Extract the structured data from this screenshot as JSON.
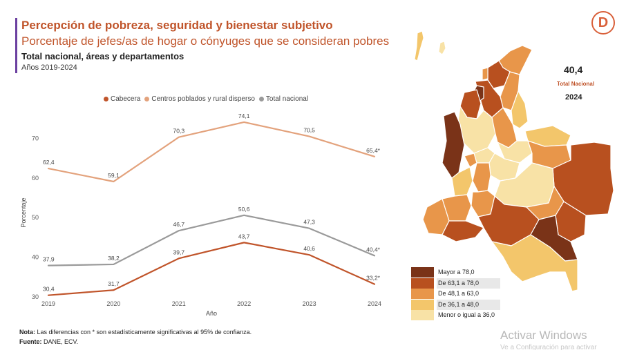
{
  "header": {
    "title": "Percepción de pobreza, seguridad y bienestar subjetivo",
    "subtitle": "Porcentaje de jefes/as de hogar o cónyuges que se consideran pobres",
    "subtitle2": "Total nacional, áreas y departamentos",
    "years": "Años 2019-2024",
    "accent_color": "#6b3fa0"
  },
  "chart_data": {
    "type": "line",
    "x": [
      "2019",
      "2020",
      "2021",
      "2022",
      "2023",
      "2024"
    ],
    "xlabel": "Año",
    "ylabel": "Porcentaje",
    "ylim": [
      30,
      76
    ],
    "yticks": [
      "30",
      "40",
      "50",
      "60",
      "70"
    ],
    "grid": false,
    "legend_position": "top",
    "series": [
      {
        "name": "Cabecera",
        "color": "#c0542a",
        "values": [
          30.4,
          31.7,
          39.7,
          43.7,
          40.6,
          33.2
        ],
        "labels": [
          "30,4",
          "31,7",
          "39,7",
          "43,7",
          "40,6",
          "33,2*"
        ]
      },
      {
        "name": "Centros poblados y rural disperso",
        "color": "#e3a27c",
        "values": [
          62.4,
          59.1,
          70.3,
          74.1,
          70.5,
          65.4
        ],
        "labels": [
          "62,4",
          "59,1",
          "70,3",
          "74,1",
          "70,5",
          "65,4*"
        ]
      },
      {
        "name": "Total nacional",
        "color": "#9a9a9a",
        "values": [
          37.9,
          38.2,
          46.7,
          50.6,
          47.3,
          40.4
        ],
        "labels": [
          "37,9",
          "38,2",
          "46,7",
          "50,6",
          "47,3",
          "40,4*"
        ]
      }
    ]
  },
  "footer": {
    "note_label": "Nota:",
    "note_text": " Las diferencias con * son estadísticamente significativas al 95% de confianza.",
    "source_label": "Fuente:",
    "source_text": " DANE, ECV."
  },
  "logo": {
    "letter": "D",
    "color": "#d9603a"
  },
  "map": {
    "national_value": "40,4",
    "national_label": "Total Nacional",
    "year": "2024",
    "legend": [
      {
        "label": "Mayor a 78,0",
        "color": "#7a3318"
      },
      {
        "label": "De 63,1 a 78,0",
        "color": "#b8501f"
      },
      {
        "label": "De 48,1 a 63,0",
        "color": "#e8964a"
      },
      {
        "label": "De 36,1 a 48,0",
        "color": "#f3c66b"
      },
      {
        "label": "Menor o igual a 36,0",
        "color": "#f8e2a6"
      }
    ]
  },
  "watermark": {
    "title": "Activar Windows",
    "subtitle": "Ve a Configuración para activar"
  }
}
